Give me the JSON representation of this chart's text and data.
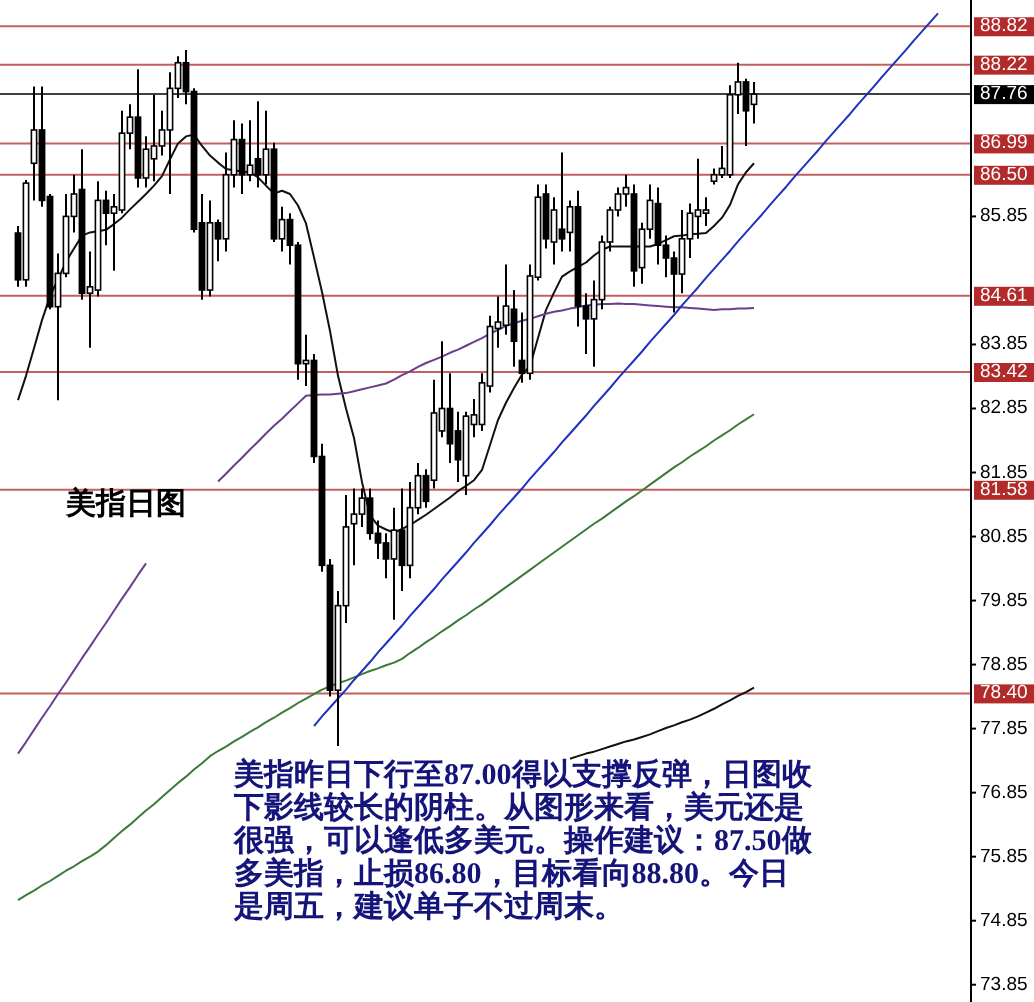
{
  "chart_data": {
    "type": "candlestick",
    "title": "美指日图",
    "categories": [
      null,
      null,
      null,
      null,
      null,
      null,
      null,
      null,
      null,
      null,
      null,
      null,
      null,
      null,
      null,
      null,
      null,
      null,
      null,
      null,
      null,
      null,
      null,
      null,
      null,
      null,
      null,
      null,
      null,
      null,
      null,
      null,
      null,
      null,
      null,
      null,
      null,
      null,
      null,
      null,
      null,
      null,
      null,
      null,
      null,
      null,
      null,
      null,
      null,
      null,
      null,
      null,
      null,
      null,
      null,
      null,
      null,
      null,
      null,
      null,
      null,
      null,
      null,
      null,
      null,
      null,
      null,
      null,
      null,
      null,
      null,
      null,
      null,
      null,
      null,
      null,
      null,
      null,
      null,
      null,
      null,
      null,
      null,
      null,
      null,
      null,
      null,
      null,
      null,
      null,
      null,
      null,
      null,
      null,
      null,
      null,
      null,
      null,
      null,
      null,
      null,
      null,
      null,
      null,
      null,
      null,
      null,
      null,
      null,
      null,
      null,
      null,
      null,
      null,
      null,
      null
    ],
    "ohlc": [
      [
        85.59,
        85.7,
        84.75,
        84.86
      ],
      [
        84.86,
        86.42,
        84.75,
        86.37
      ],
      [
        86.68,
        87.88,
        86.1,
        87.2
      ],
      [
        87.2,
        87.88,
        86.0,
        86.1
      ],
      [
        86.16,
        86.2,
        84.4,
        84.44
      ],
      [
        84.44,
        85.27,
        82.98,
        84.96
      ],
      [
        84.96,
        86.2,
        84.9,
        85.85
      ],
      [
        85.85,
        86.5,
        85.6,
        86.2
      ],
      [
        86.27,
        86.9,
        84.55,
        84.65
      ],
      [
        84.65,
        85.3,
        83.8,
        84.75
      ],
      [
        84.7,
        86.4,
        84.6,
        86.1
      ],
      [
        86.1,
        86.25,
        85.4,
        85.9
      ],
      [
        85.9,
        86.2,
        85.0,
        86.0
      ],
      [
        85.95,
        87.5,
        85.9,
        87.15
      ],
      [
        87.15,
        87.6,
        86.9,
        87.4
      ],
      [
        87.4,
        88.15,
        86.3,
        86.45
      ],
      [
        86.45,
        87.1,
        86.3,
        86.9
      ],
      [
        86.75,
        87.75,
        86.4,
        86.95
      ],
      [
        86.95,
        87.5,
        86.8,
        87.2
      ],
      [
        87.2,
        88.1,
        86.2,
        87.85
      ],
      [
        87.85,
        88.35,
        87.7,
        88.25
      ],
      [
        88.25,
        88.45,
        87.6,
        87.8
      ],
      [
        87.8,
        87.85,
        85.6,
        85.65
      ],
      [
        85.75,
        86.2,
        84.55,
        84.7
      ],
      [
        84.7,
        86.1,
        84.6,
        85.75
      ],
      [
        85.75,
        85.8,
        85.15,
        85.5
      ],
      [
        85.5,
        86.85,
        85.3,
        86.5
      ],
      [
        86.5,
        87.35,
        86.3,
        87.05
      ],
      [
        87.05,
        87.3,
        86.2,
        86.5
      ],
      [
        86.5,
        87.35,
        86.4,
        86.65
      ],
      [
        86.75,
        87.65,
        86.3,
        86.5
      ],
      [
        86.5,
        87.5,
        86.35,
        86.9
      ],
      [
        86.9,
        87.0,
        85.45,
        85.5
      ],
      [
        85.5,
        86.0,
        85.3,
        85.8
      ],
      [
        85.8,
        85.9,
        85.1,
        85.4
      ],
      [
        85.4,
        85.45,
        83.3,
        83.55
      ],
      [
        83.55,
        84.0,
        83.2,
        83.6
      ],
      [
        83.6,
        83.7,
        82.0,
        82.1
      ],
      [
        82.1,
        82.3,
        80.3,
        80.4
      ],
      [
        80.4,
        80.5,
        78.35,
        78.45
      ],
      [
        78.45,
        80.0,
        77.58,
        79.77
      ],
      [
        79.77,
        81.5,
        79.5,
        81.0
      ],
      [
        81.05,
        81.6,
        80.4,
        81.2
      ],
      [
        81.2,
        81.6,
        81.0,
        81.45
      ],
      [
        81.45,
        81.6,
        80.8,
        80.9
      ],
      [
        80.9,
        81.1,
        80.5,
        80.75
      ],
      [
        80.75,
        80.9,
        80.2,
        80.5
      ],
      [
        80.5,
        81.3,
        79.55,
        80.95
      ],
      [
        80.95,
        81.6,
        80.0,
        80.4
      ],
      [
        80.4,
        81.7,
        80.2,
        81.3
      ],
      [
        81.3,
        82.0,
        81.2,
        81.8
      ],
      [
        81.8,
        81.9,
        81.3,
        81.4
      ],
      [
        81.73,
        83.3,
        81.6,
        82.78
      ],
      [
        82.5,
        83.9,
        82.4,
        82.85
      ],
      [
        82.85,
        83.4,
        82.0,
        82.3
      ],
      [
        82.5,
        82.8,
        81.7,
        82.05
      ],
      [
        81.8,
        82.8,
        81.5,
        82.73
      ],
      [
        82.6,
        83.0,
        82.4,
        82.75
      ],
      [
        82.6,
        83.4,
        82.5,
        83.25
      ],
      [
        83.2,
        84.3,
        83.1,
        84.13
      ],
      [
        84.1,
        84.6,
        83.8,
        84.2
      ],
      [
        84.15,
        85.1,
        84.0,
        84.45
      ],
      [
        84.4,
        84.7,
        83.5,
        83.9
      ],
      [
        83.6,
        84.35,
        83.25,
        83.4
      ],
      [
        83.4,
        85.1,
        83.3,
        84.92
      ],
      [
        84.9,
        86.35,
        84.85,
        86.15
      ],
      [
        86.2,
        86.35,
        85.35,
        85.5
      ],
      [
        85.45,
        86.15,
        85.1,
        85.95
      ],
      [
        85.65,
        86.85,
        85.3,
        85.5
      ],
      [
        85.6,
        86.1,
        85.3,
        86.0
      ],
      [
        86.0,
        86.25,
        84.13,
        84.45
      ],
      [
        84.45,
        84.65,
        83.7,
        84.25
      ],
      [
        84.25,
        84.85,
        83.5,
        84.55
      ],
      [
        84.55,
        85.55,
        84.4,
        85.45
      ],
      [
        85.45,
        86.0,
        85.3,
        85.95
      ],
      [
        85.95,
        86.3,
        85.85,
        86.2
      ],
      [
        86.2,
        86.5,
        86.0,
        86.3
      ],
      [
        86.2,
        86.35,
        84.75,
        85.0
      ],
      [
        85.05,
        85.75,
        84.8,
        85.65
      ],
      [
        85.65,
        86.35,
        85.5,
        86.1
      ],
      [
        86.05,
        86.3,
        85.1,
        85.4
      ],
      [
        85.4,
        85.55,
        84.9,
        85.2
      ],
      [
        85.2,
        85.3,
        84.35,
        84.95
      ],
      [
        84.95,
        85.95,
        84.65,
        85.5
      ],
      [
        85.5,
        86.05,
        85.2,
        85.9
      ],
      [
        85.85,
        86.75,
        85.5,
        85.95
      ],
      [
        85.9,
        86.15,
        85.7,
        85.95
      ],
      [
        86.4,
        86.6,
        86.35,
        86.5
      ],
      [
        86.5,
        86.95,
        86.45,
        86.6
      ],
      [
        86.5,
        87.9,
        86.45,
        87.75
      ],
      [
        87.75,
        88.25,
        87.45,
        87.95
      ],
      [
        87.95,
        88.0,
        86.95,
        87.5
      ],
      [
        87.6,
        87.95,
        87.3,
        87.76
      ],
      null,
      null,
      null,
      null,
      null,
      null,
      null,
      null,
      null,
      null,
      null,
      null,
      null,
      null,
      null,
      null,
      null,
      null,
      null,
      null,
      null,
      null,
      null
    ],
    "series": [
      {
        "type": "line",
        "color": "#111111",
        "values": [
          82.98,
          83.36,
          83.79,
          84.23,
          84.6,
          84.87,
          85.14,
          85.35,
          85.55,
          85.6,
          85.62,
          85.64,
          85.73,
          85.83,
          85.96,
          86.08,
          86.2,
          86.33,
          86.48,
          86.74,
          86.99,
          87.1,
          87.13,
          86.95,
          86.8,
          86.69,
          86.59,
          86.57,
          86.55,
          86.54,
          86.46,
          86.33,
          86.21,
          86.25,
          86.2,
          86.02,
          85.74,
          85.21,
          84.67,
          84.06,
          83.36,
          82.85,
          82.39,
          81.7,
          81.18,
          81.02,
          80.96,
          80.91,
          80.97,
          81.03,
          81.11,
          81.19,
          81.28,
          81.37,
          81.46,
          81.56,
          81.64,
          81.73,
          81.89,
          82.28,
          82.67,
          82.94,
          83.17,
          83.38,
          83.51,
          83.95,
          84.39,
          84.66,
          84.91,
          84.99,
          85.06,
          85.13,
          85.24,
          85.33,
          85.38,
          85.38,
          85.38,
          85.38,
          85.38,
          85.38,
          85.42,
          85.48,
          85.54,
          85.55,
          85.57,
          85.58,
          85.59,
          85.7,
          85.83,
          86.03,
          86.35,
          86.54,
          86.68,
          null,
          null,
          null,
          null,
          null,
          null,
          null,
          null,
          null,
          null,
          null,
          null,
          null,
          null,
          null,
          null,
          null,
          null,
          null,
          null,
          null,
          null,
          null
        ]
      },
      {
        "type": "line",
        "color": "#6a3d8f",
        "values": [
          77.46,
          77.64,
          77.83,
          78.02,
          78.2,
          78.39,
          78.57,
          78.76,
          78.95,
          79.13,
          79.32,
          79.5,
          79.69,
          79.88,
          80.06,
          80.25,
          80.43,
          null,
          null,
          null,
          null,
          null,
          null,
          null,
          null,
          81.71,
          81.83,
          81.96,
          82.08,
          82.21,
          82.33,
          82.46,
          82.58,
          82.69,
          82.81,
          82.93,
          83.05,
          83.06,
          83.07,
          83.07,
          83.08,
          83.09,
          83.12,
          83.15,
          83.18,
          83.21,
          83.24,
          83.3,
          83.37,
          83.43,
          83.5,
          83.56,
          83.61,
          83.66,
          83.72,
          83.77,
          83.83,
          83.89,
          83.95,
          84.02,
          84.08,
          84.14,
          84.18,
          84.22,
          84.25,
          84.29,
          84.33,
          84.36,
          84.38,
          84.41,
          84.43,
          84.46,
          84.47,
          84.48,
          84.48,
          84.49,
          84.48,
          84.48,
          84.47,
          84.46,
          84.45,
          84.44,
          84.43,
          84.43,
          84.42,
          84.41,
          84.4,
          84.39,
          84.4,
          84.4,
          84.41,
          84.41,
          84.42,
          null,
          null,
          null,
          null,
          null,
          null,
          null,
          null,
          null,
          null,
          null,
          null,
          null,
          null,
          null,
          null,
          null,
          null,
          null,
          null,
          null,
          null,
          null
        ]
      },
      {
        "type": "line",
        "color": "#3a7a3a",
        "values": [
          75.17,
          75.25,
          75.32,
          75.4,
          75.47,
          75.55,
          75.63,
          75.7,
          75.78,
          75.85,
          75.93,
          76.03,
          76.14,
          76.25,
          76.35,
          76.46,
          76.57,
          76.67,
          76.78,
          76.89,
          77.0,
          77.1,
          77.21,
          77.31,
          77.42,
          77.5,
          77.57,
          77.65,
          77.72,
          77.8,
          77.87,
          77.95,
          78.02,
          78.1,
          78.17,
          78.25,
          78.32,
          78.39,
          78.46,
          78.51,
          78.56,
          78.6,
          78.65,
          78.7,
          78.75,
          78.79,
          78.84,
          78.88,
          78.94,
          79.03,
          79.11,
          79.2,
          79.28,
          79.37,
          79.45,
          79.54,
          79.62,
          79.71,
          79.79,
          79.88,
          79.97,
          80.06,
          80.15,
          80.24,
          80.33,
          80.42,
          80.51,
          80.6,
          80.69,
          80.78,
          80.87,
          80.96,
          81.05,
          81.13,
          81.22,
          81.31,
          81.4,
          81.48,
          81.57,
          81.66,
          81.75,
          81.84,
          81.93,
          82.01,
          82.1,
          82.18,
          82.26,
          82.35,
          82.43,
          82.51,
          82.6,
          82.68,
          82.76,
          null,
          null,
          null,
          null,
          null,
          null,
          null,
          null,
          null,
          null,
          null,
          null,
          null,
          null,
          null,
          null,
          null,
          null,
          null,
          null,
          null,
          null,
          null
        ]
      },
      {
        "type": "line",
        "color": "#111111",
        "values": [
          null,
          null,
          null,
          null,
          null,
          null,
          null,
          null,
          null,
          null,
          null,
          null,
          null,
          null,
          null,
          null,
          null,
          null,
          null,
          null,
          null,
          null,
          null,
          null,
          null,
          null,
          null,
          null,
          null,
          null,
          null,
          null,
          null,
          null,
          null,
          null,
          null,
          null,
          null,
          null,
          null,
          null,
          null,
          null,
          null,
          null,
          null,
          null,
          null,
          null,
          null,
          null,
          null,
          null,
          null,
          null,
          null,
          null,
          null,
          null,
          null,
          null,
          null,
          null,
          null,
          null,
          null,
          null,
          null,
          77.38,
          77.42,
          77.46,
          77.49,
          77.53,
          77.57,
          77.61,
          77.65,
          77.68,
          77.72,
          77.76,
          77.81,
          77.86,
          77.9,
          77.95,
          77.99,
          78.04,
          78.1,
          78.16,
          78.23,
          78.29,
          78.36,
          78.42,
          78.49,
          null,
          null,
          null,
          null,
          null,
          null,
          null,
          null,
          null,
          null,
          null,
          null,
          null,
          null,
          null,
          null,
          null,
          null,
          null,
          null,
          null,
          null,
          null
        ]
      },
      {
        "type": "line",
        "color": "#2030c0",
        "values": [
          null,
          null,
          null,
          null,
          null,
          null,
          null,
          null,
          null,
          null,
          null,
          null,
          null,
          null,
          null,
          null,
          null,
          null,
          null,
          null,
          null,
          null,
          null,
          null,
          null,
          null,
          null,
          null,
          null,
          null,
          null,
          null,
          null,
          null,
          null,
          null,
          null,
          77.89,
          78.04,
          78.18,
          78.32,
          78.46,
          78.61,
          78.75,
          78.89,
          79.04,
          79.18,
          79.32,
          79.46,
          79.61,
          79.75,
          79.89,
          80.03,
          80.18,
          80.32,
          80.46,
          80.6,
          80.75,
          80.89,
          81.03,
          81.18,
          81.32,
          81.46,
          81.6,
          81.75,
          81.89,
          82.03,
          82.17,
          82.32,
          82.46,
          82.6,
          82.74,
          82.89,
          83.03,
          83.17,
          83.32,
          83.46,
          83.6,
          83.74,
          83.89,
          84.03,
          84.17,
          84.31,
          84.46,
          84.6,
          84.74,
          84.89,
          85.03,
          85.17,
          85.31,
          85.46,
          85.6,
          85.74,
          85.88,
          86.03,
          86.17,
          86.31,
          86.46,
          86.6,
          86.74,
          86.88,
          87.03,
          87.17,
          87.31,
          87.45,
          87.6,
          87.74,
          87.88,
          88.03,
          88.17,
          88.31,
          88.45,
          88.6,
          88.74,
          88.88,
          89.02
        ]
      }
    ],
    "ylim": [
      73.58,
      89.23
    ],
    "yticks": [
      73.85,
      74.85,
      75.85,
      76.85,
      77.85,
      78.85,
      79.85,
      80.85,
      81.85,
      82.85,
      83.85,
      85.85
    ],
    "tick_labels": "y",
    "ref_lines": [
      {
        "axis": "y",
        "value": 88.82,
        "label": "88.82",
        "color": "#b22a2a"
      },
      {
        "axis": "y",
        "value": 88.22,
        "label": "88.22",
        "color": "#b22a2a"
      },
      {
        "axis": "y",
        "value": 87.76,
        "label": "87.76",
        "color": "#000000"
      },
      {
        "axis": "y",
        "value": 86.99,
        "label": "86.99",
        "color": "#b22a2a"
      },
      {
        "axis": "y",
        "value": 86.5,
        "label": "86.50",
        "color": "#b22a2a"
      },
      {
        "axis": "y",
        "value": 84.61,
        "label": "84.61",
        "color": "#b22a2a"
      },
      {
        "axis": "y",
        "value": 83.42,
        "label": "83.42",
        "color": "#b22a2a"
      },
      {
        "axis": "y",
        "value": 81.58,
        "label": "81.58",
        "color": "#b22a2a"
      },
      {
        "axis": "y",
        "value": 78.4,
        "label": "78.40",
        "color": "#b22a2a"
      }
    ],
    "annotations": [
      "美指昨日下行至87.00得以支撑反弹，日图收下影线较长的阴柱。从图形来看，美元还是很强，可以逢低多美元。操作建议：87.50做多美指，止损86.80，目标看向88.80。今日是周五，建议单子不过周末。"
    ]
  }
}
